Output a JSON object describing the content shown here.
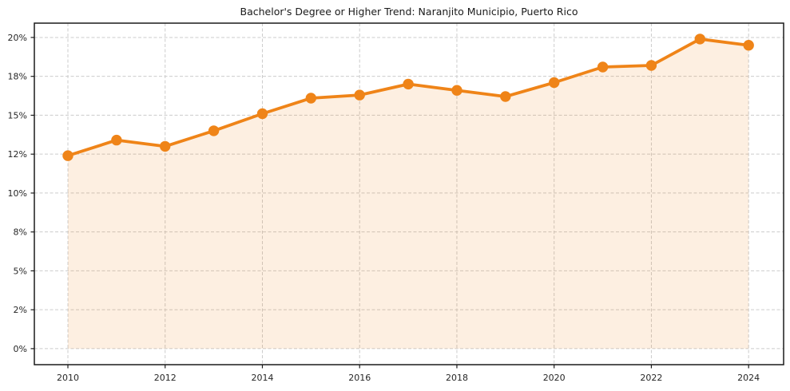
{
  "chart_data": {
    "type": "line",
    "title": "Bachelor's Degree or Higher Trend: Naranjito Municipio, Puerto Rico",
    "xlabel": "",
    "ylabel": "",
    "x": [
      2010,
      2011,
      2012,
      2013,
      2014,
      2015,
      2016,
      2017,
      2018,
      2019,
      2020,
      2021,
      2022,
      2023,
      2024
    ],
    "series": [
      {
        "name": "Bachelor's degree or higher (%)",
        "values": [
          12.4,
          13.4,
          13.0,
          14.0,
          15.1,
          16.1,
          16.3,
          17.0,
          16.6,
          16.2,
          17.1,
          18.1,
          18.2,
          19.9,
          19.5
        ]
      }
    ],
    "x_ticks": {
      "values": [
        2010,
        2012,
        2014,
        2016,
        2018,
        2020,
        2022,
        2024
      ],
      "labels": [
        "2010",
        "2012",
        "2014",
        "2016",
        "2018",
        "2020",
        "2022",
        "2024"
      ]
    },
    "y_ticks": {
      "values": [
        0,
        2.5,
        5,
        7.5,
        10,
        12.5,
        15,
        17.5,
        20
      ],
      "labels": [
        "0%",
        "2%",
        "5%",
        "8%",
        "10%",
        "12%",
        "15%",
        "18%",
        "20%"
      ]
    },
    "xlim": [
      2009.31,
      2024.72
    ],
    "ylim": [
      -1.03,
      20.92
    ],
    "grid": true,
    "legend_position": "none",
    "area_fill": true,
    "marker": "circle",
    "colors": {
      "line": "#ef8418",
      "fill": "rgba(239,132,24,0.13)",
      "grid": "#cccccc",
      "spine": "#1a1a1a",
      "tick_label": "#262626",
      "background": "#ffffff"
    }
  }
}
